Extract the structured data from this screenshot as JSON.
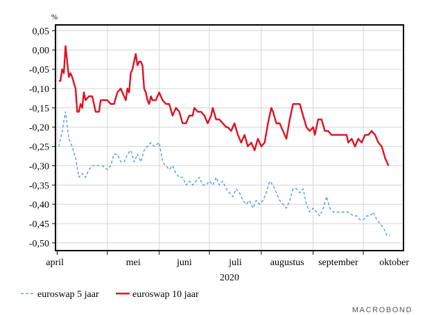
{
  "chart_data": {
    "type": "line",
    "unit": "%",
    "year_label": "2020",
    "ylim": [
      -0.52,
      0.065
    ],
    "yticks": [
      0.05,
      0.0,
      -0.05,
      -0.1,
      -0.15,
      -0.2,
      -0.25,
      -0.3,
      -0.35,
      -0.4,
      -0.45,
      -0.5
    ],
    "ytick_labels": [
      "0,05",
      "0,00",
      "-0,05",
      "-0,10",
      "-0,15",
      "-0,20",
      "-0,25",
      "-0,30",
      "-0,35",
      "-0,40",
      "-0,45",
      "-0,50"
    ],
    "xlim": [
      "2020-03-31",
      "2020-10-25"
    ],
    "months": [
      {
        "label": "april",
        "start": "2020-04-01"
      },
      {
        "label": "mei",
        "start": "2020-05-01"
      },
      {
        "label": "juni",
        "start": "2020-06-01"
      },
      {
        "label": "juli",
        "start": "2020-07-01"
      },
      {
        "label": "augustus",
        "start": "2020-08-01"
      },
      {
        "label": "september",
        "start": "2020-09-01"
      },
      {
        "label": "oktober",
        "start": "2020-10-01"
      }
    ],
    "grid": true,
    "legend_position": "bottom-left",
    "series": [
      {
        "name": "euroswap 5 jaar",
        "color": "#4a90e2",
        "style": "dashed",
        "points": [
          [
            "2020-04-02",
            -0.25
          ],
          [
            "2020-04-04",
            -0.21
          ],
          [
            "2020-04-06",
            -0.16
          ],
          [
            "2020-04-08",
            -0.23
          ],
          [
            "2020-04-10",
            -0.25
          ],
          [
            "2020-04-12",
            -0.28
          ],
          [
            "2020-04-14",
            -0.33
          ],
          [
            "2020-04-16",
            -0.32
          ],
          [
            "2020-04-18",
            -0.33
          ],
          [
            "2020-04-20",
            -0.31
          ],
          [
            "2020-04-22",
            -0.3
          ],
          [
            "2020-04-25",
            -0.3
          ],
          [
            "2020-04-28",
            -0.3
          ],
          [
            "2020-05-01",
            -0.31
          ],
          [
            "2020-05-03",
            -0.3
          ],
          [
            "2020-05-05",
            -0.27
          ],
          [
            "2020-05-07",
            -0.27
          ],
          [
            "2020-05-09",
            -0.29
          ],
          [
            "2020-05-11",
            -0.29
          ],
          [
            "2020-05-13",
            -0.27
          ],
          [
            "2020-05-15",
            -0.26
          ],
          [
            "2020-05-17",
            -0.29
          ],
          [
            "2020-05-19",
            -0.27
          ],
          [
            "2020-05-21",
            -0.29
          ],
          [
            "2020-05-23",
            -0.26
          ],
          [
            "2020-05-25",
            -0.25
          ],
          [
            "2020-05-27",
            -0.24
          ],
          [
            "2020-05-29",
            -0.25
          ],
          [
            "2020-06-01",
            -0.24
          ],
          [
            "2020-06-03",
            -0.29
          ],
          [
            "2020-06-05",
            -0.3
          ],
          [
            "2020-06-07",
            -0.31
          ],
          [
            "2020-06-09",
            -0.3
          ],
          [
            "2020-06-11",
            -0.32
          ],
          [
            "2020-06-13",
            -0.33
          ],
          [
            "2020-06-15",
            -0.33
          ],
          [
            "2020-06-17",
            -0.35
          ],
          [
            "2020-06-19",
            -0.34
          ],
          [
            "2020-06-21",
            -0.35
          ],
          [
            "2020-06-23",
            -0.34
          ],
          [
            "2020-06-25",
            -0.33
          ],
          [
            "2020-06-27",
            -0.35
          ],
          [
            "2020-06-29",
            -0.35
          ],
          [
            "2020-07-01",
            -0.34
          ],
          [
            "2020-07-03",
            -0.35
          ],
          [
            "2020-07-05",
            -0.33
          ],
          [
            "2020-07-07",
            -0.35
          ],
          [
            "2020-07-09",
            -0.34
          ],
          [
            "2020-07-11",
            -0.36
          ],
          [
            "2020-07-13",
            -0.37
          ],
          [
            "2020-07-15",
            -0.38
          ],
          [
            "2020-07-17",
            -0.36
          ],
          [
            "2020-07-19",
            -0.37
          ],
          [
            "2020-07-21",
            -0.39
          ],
          [
            "2020-07-23",
            -0.4
          ],
          [
            "2020-07-25",
            -0.39
          ],
          [
            "2020-07-27",
            -0.41
          ],
          [
            "2020-07-29",
            -0.39
          ],
          [
            "2020-07-31",
            -0.4
          ],
          [
            "2020-08-02",
            -0.39
          ],
          [
            "2020-08-04",
            -0.37
          ],
          [
            "2020-08-06",
            -0.34
          ],
          [
            "2020-08-08",
            -0.35
          ],
          [
            "2020-08-10",
            -0.37
          ],
          [
            "2020-08-12",
            -0.39
          ],
          [
            "2020-08-14",
            -0.4
          ],
          [
            "2020-08-16",
            -0.41
          ],
          [
            "2020-08-18",
            -0.39
          ],
          [
            "2020-08-20",
            -0.36
          ],
          [
            "2020-08-22",
            -0.36
          ],
          [
            "2020-08-24",
            -0.37
          ],
          [
            "2020-08-26",
            -0.36
          ],
          [
            "2020-08-28",
            -0.4
          ],
          [
            "2020-08-30",
            -0.42
          ],
          [
            "2020-09-01",
            -0.41
          ],
          [
            "2020-09-03",
            -0.42
          ],
          [
            "2020-09-05",
            -0.43
          ],
          [
            "2020-09-07",
            -0.41
          ],
          [
            "2020-09-09",
            -0.38
          ],
          [
            "2020-09-11",
            -0.41
          ],
          [
            "2020-09-13",
            -0.42
          ],
          [
            "2020-09-16",
            -0.42
          ],
          [
            "2020-09-19",
            -0.42
          ],
          [
            "2020-09-22",
            -0.42
          ],
          [
            "2020-09-25",
            -0.43
          ],
          [
            "2020-09-27",
            -0.43
          ],
          [
            "2020-09-29",
            -0.44
          ],
          [
            "2020-10-01",
            -0.44
          ],
          [
            "2020-10-03",
            -0.43
          ],
          [
            "2020-10-05",
            -0.43
          ],
          [
            "2020-10-07",
            -0.42
          ],
          [
            "2020-10-09",
            -0.44
          ],
          [
            "2020-10-11",
            -0.45
          ],
          [
            "2020-10-13",
            -0.46
          ],
          [
            "2020-10-15",
            -0.48
          ],
          [
            "2020-10-17",
            -0.48
          ]
        ]
      },
      {
        "name": "euroswap 10 jaar",
        "color": "#e01020",
        "style": "solid",
        "points": [
          [
            "2020-04-02",
            -0.08
          ],
          [
            "2020-04-03",
            -0.08
          ],
          [
            "2020-04-04",
            -0.05
          ],
          [
            "2020-04-05",
            -0.06
          ],
          [
            "2020-04-06",
            0.01
          ],
          [
            "2020-04-07",
            -0.03
          ],
          [
            "2020-04-08",
            -0.07
          ],
          [
            "2020-04-09",
            -0.06
          ],
          [
            "2020-04-10",
            -0.07
          ],
          [
            "2020-04-12",
            -0.1
          ],
          [
            "2020-04-13",
            -0.16
          ],
          [
            "2020-04-14",
            -0.16
          ],
          [
            "2020-04-15",
            -0.14
          ],
          [
            "2020-04-16",
            -0.15
          ],
          [
            "2020-04-17",
            -0.11
          ],
          [
            "2020-04-18",
            -0.13
          ],
          [
            "2020-04-20",
            -0.12
          ],
          [
            "2020-04-22",
            -0.12
          ],
          [
            "2020-04-24",
            -0.16
          ],
          [
            "2020-04-26",
            -0.16
          ],
          [
            "2020-04-27",
            -0.13
          ],
          [
            "2020-04-29",
            -0.13
          ],
          [
            "2020-05-01",
            -0.13
          ],
          [
            "2020-05-03",
            -0.14
          ],
          [
            "2020-05-05",
            -0.14
          ],
          [
            "2020-05-07",
            -0.11
          ],
          [
            "2020-05-09",
            -0.1
          ],
          [
            "2020-05-10",
            -0.11
          ],
          [
            "2020-05-12",
            -0.13
          ],
          [
            "2020-05-13",
            -0.1
          ],
          [
            "2020-05-14",
            -0.11
          ],
          [
            "2020-05-15",
            -0.06
          ],
          [
            "2020-05-16",
            -0.05
          ],
          [
            "2020-05-18",
            -0.01
          ],
          [
            "2020-05-19",
            -0.04
          ],
          [
            "2020-05-20",
            -0.03
          ],
          [
            "2020-05-21",
            -0.03
          ],
          [
            "2020-05-22",
            -0.04
          ],
          [
            "2020-05-23",
            -0.1
          ],
          [
            "2020-05-24",
            -0.11
          ],
          [
            "2020-05-25",
            -0.13
          ],
          [
            "2020-05-26",
            -0.14
          ],
          [
            "2020-05-27",
            -0.12
          ],
          [
            "2020-05-28",
            -0.13
          ],
          [
            "2020-05-30",
            -0.13
          ],
          [
            "2020-06-01",
            -0.11
          ],
          [
            "2020-06-03",
            -0.13
          ],
          [
            "2020-06-05",
            -0.14
          ],
          [
            "2020-06-07",
            -0.14
          ],
          [
            "2020-06-09",
            -0.17
          ],
          [
            "2020-06-11",
            -0.15
          ],
          [
            "2020-06-13",
            -0.16
          ],
          [
            "2020-06-15",
            -0.19
          ],
          [
            "2020-06-17",
            -0.19
          ],
          [
            "2020-06-19",
            -0.17
          ],
          [
            "2020-06-21",
            -0.17
          ],
          [
            "2020-06-22",
            -0.15
          ],
          [
            "2020-06-24",
            -0.16
          ],
          [
            "2020-06-26",
            -0.16
          ],
          [
            "2020-06-28",
            -0.17
          ],
          [
            "2020-06-30",
            -0.19
          ],
          [
            "2020-07-02",
            -0.17
          ],
          [
            "2020-07-03",
            -0.15
          ],
          [
            "2020-07-05",
            -0.18
          ],
          [
            "2020-07-07",
            -0.18
          ],
          [
            "2020-07-09",
            -0.19
          ],
          [
            "2020-07-11",
            -0.2
          ],
          [
            "2020-07-12",
            -0.2
          ],
          [
            "2020-07-14",
            -0.21
          ],
          [
            "2020-07-16",
            -0.19
          ],
          [
            "2020-07-18",
            -0.22
          ],
          [
            "2020-07-20",
            -0.24
          ],
          [
            "2020-07-22",
            -0.22
          ],
          [
            "2020-07-24",
            -0.25
          ],
          [
            "2020-07-26",
            -0.24
          ],
          [
            "2020-07-28",
            -0.26
          ],
          [
            "2020-07-30",
            -0.23
          ],
          [
            "2020-08-01",
            -0.25
          ],
          [
            "2020-08-03",
            -0.24
          ],
          [
            "2020-08-05",
            -0.19
          ],
          [
            "2020-08-07",
            -0.15
          ],
          [
            "2020-08-08",
            -0.16
          ],
          [
            "2020-08-10",
            -0.19
          ],
          [
            "2020-08-12",
            -0.19
          ],
          [
            "2020-08-14",
            -0.21
          ],
          [
            "2020-08-16",
            -0.23
          ],
          [
            "2020-08-18",
            -0.18
          ],
          [
            "2020-08-20",
            -0.14
          ],
          [
            "2020-08-22",
            -0.14
          ],
          [
            "2020-08-24",
            -0.14
          ],
          [
            "2020-08-26",
            -0.17
          ],
          [
            "2020-08-28",
            -0.2
          ],
          [
            "2020-08-30",
            -0.21
          ],
          [
            "2020-09-01",
            -0.2
          ],
          [
            "2020-09-02",
            -0.22
          ],
          [
            "2020-09-04",
            -0.18
          ],
          [
            "2020-09-06",
            -0.18
          ],
          [
            "2020-09-08",
            -0.21
          ],
          [
            "2020-09-10",
            -0.21
          ],
          [
            "2020-09-12",
            -0.22
          ],
          [
            "2020-09-15",
            -0.22
          ],
          [
            "2020-09-18",
            -0.22
          ],
          [
            "2020-09-21",
            -0.22
          ],
          [
            "2020-09-22",
            -0.24
          ],
          [
            "2020-09-24",
            -0.23
          ],
          [
            "2020-09-26",
            -0.25
          ],
          [
            "2020-09-28",
            -0.23
          ],
          [
            "2020-09-30",
            -0.24
          ],
          [
            "2020-10-02",
            -0.22
          ],
          [
            "2020-10-04",
            -0.22
          ],
          [
            "2020-10-06",
            -0.21
          ],
          [
            "2020-10-08",
            -0.22
          ],
          [
            "2020-10-10",
            -0.24
          ],
          [
            "2020-10-12",
            -0.25
          ],
          [
            "2020-10-14",
            -0.28
          ],
          [
            "2020-10-16",
            -0.3
          ]
        ]
      }
    ]
  },
  "branding": {
    "text": "MACROBOND"
  }
}
